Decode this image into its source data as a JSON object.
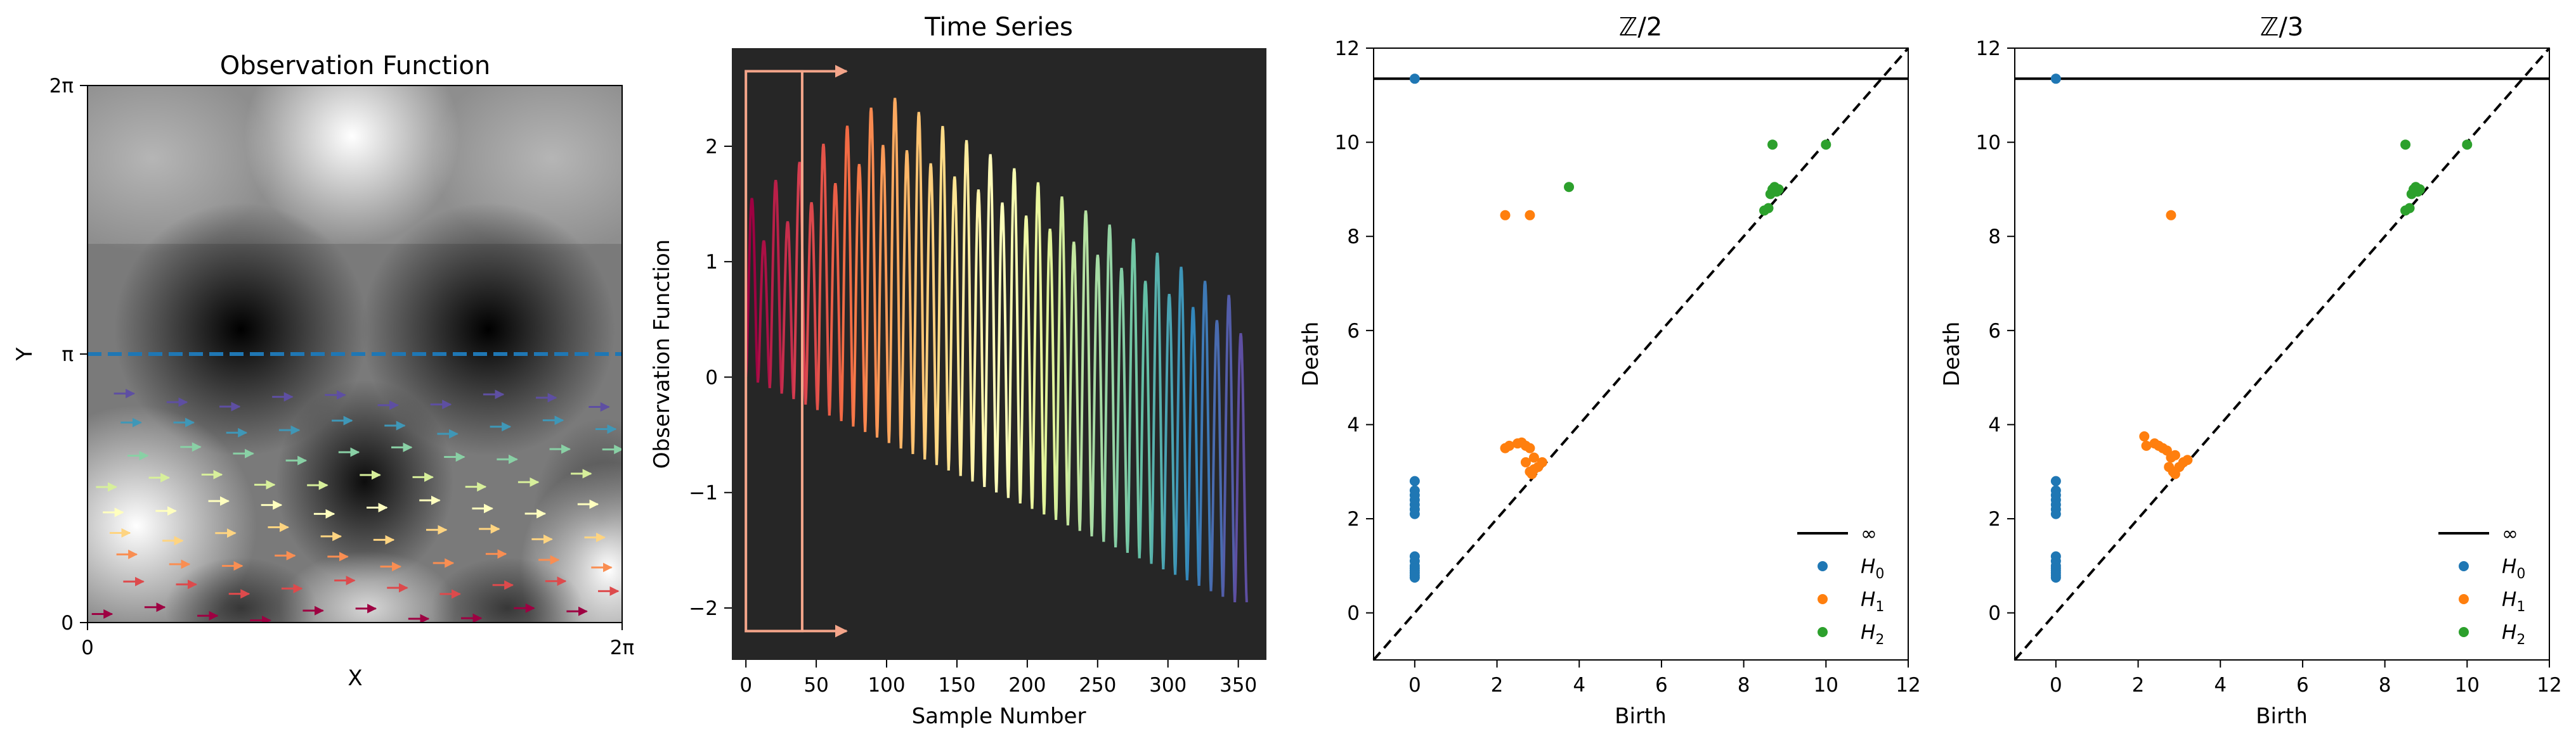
{
  "figure": {
    "panel_count": 4
  },
  "chart_data": [
    {
      "type": "heatmap",
      "title": "Observation Function",
      "xlabel": "X",
      "ylabel": "Y",
      "xlim": [
        0,
        6.2832
      ],
      "ylim": [
        0,
        6.2832
      ],
      "xticks": [
        {
          "value": 0,
          "label": "0"
        },
        {
          "value": 6.2832,
          "label": "2π"
        }
      ],
      "yticks": [
        {
          "value": 0,
          "label": "0"
        },
        {
          "value": 3.1416,
          "label": "π"
        },
        {
          "value": 6.2832,
          "label": "2π"
        }
      ],
      "colormap": "greys",
      "threshold_line": {
        "y": 3.1416,
        "style": "dashed",
        "color": "#1f77b4"
      },
      "arrow_field": {
        "direction": "+x",
        "colormap": "Spectral",
        "rows": 9,
        "y_range": [
          0.1,
          2.6
        ]
      }
    },
    {
      "type": "line",
      "title": "Time Series",
      "xlabel": "Sample Number",
      "ylabel": "Observation Function",
      "background": "#262626",
      "xlim": [
        -10,
        370
      ],
      "ylim": [
        -2.45,
        2.85
      ],
      "xticks": [
        0,
        50,
        100,
        150,
        200,
        250,
        300,
        350
      ],
      "yticks": [
        -2,
        -1,
        0,
        1,
        2
      ],
      "x_range": [
        0,
        356
      ],
      "n_peaks": 42,
      "peak_first": 1.55,
      "peak_max": 2.45,
      "peak_last": 0.65,
      "trough_first": 0.0,
      "trough_last": -1.95,
      "colormap": "Spectral",
      "highlight_box": {
        "x": [
          0,
          40
        ],
        "y": [
          -2.2,
          2.65
        ],
        "color": "#f4a58a"
      }
    },
    {
      "type": "scatter",
      "title": "ℤ/2",
      "xlabel": "Birth",
      "ylabel": "Death",
      "xlim": [
        -1,
        12
      ],
      "ylim": [
        -1,
        12
      ],
      "xticks": [
        0,
        2,
        4,
        6,
        8,
        10,
        12
      ],
      "yticks": [
        0,
        2,
        4,
        6,
        8,
        10,
        12
      ],
      "infinity_line": 11.35,
      "legend": {
        "position": "bottom-right",
        "entries": [
          {
            "label": "∞",
            "kind": "line",
            "color": "#000000"
          },
          {
            "base": "H",
            "sub": "0",
            "color": "#1f77b4"
          },
          {
            "base": "H",
            "sub": "1",
            "color": "#ff7f0e"
          },
          {
            "base": "H",
            "sub": "2",
            "color": "#2ca02c"
          }
        ]
      },
      "series": [
        {
          "name": "H0",
          "color": "#1f77b4",
          "points": [
            [
              0,
              11.35
            ],
            [
              0,
              2.8
            ],
            [
              0,
              2.6
            ],
            [
              0,
              2.5
            ],
            [
              0,
              2.4
            ],
            [
              0,
              2.3
            ],
            [
              0,
              2.2
            ],
            [
              0,
              2.1
            ],
            [
              0,
              1.2
            ],
            [
              0,
              1.1
            ],
            [
              0,
              1.0
            ],
            [
              0,
              0.95
            ],
            [
              0,
              0.9
            ],
            [
              0,
              0.85
            ],
            [
              0,
              0.8
            ],
            [
              0,
              0.75
            ]
          ]
        },
        {
          "name": "H1",
          "color": "#ff7f0e",
          "points": [
            [
              2.2,
              8.45
            ],
            [
              2.8,
              8.45
            ],
            [
              2.2,
              3.5
            ],
            [
              2.3,
              3.55
            ],
            [
              2.5,
              3.6
            ],
            [
              2.6,
              3.62
            ],
            [
              2.7,
              3.55
            ],
            [
              2.8,
              3.5
            ],
            [
              2.9,
              3.3
            ],
            [
              2.7,
              3.2
            ],
            [
              2.8,
              3.0
            ],
            [
              2.9,
              3.05
            ],
            [
              3.0,
              3.1
            ],
            [
              3.1,
              3.2
            ],
            [
              2.85,
              2.95
            ]
          ]
        },
        {
          "name": "H2",
          "color": "#2ca02c",
          "points": [
            [
              3.75,
              9.05
            ],
            [
              8.7,
              9.95
            ],
            [
              10.0,
              9.95
            ],
            [
              8.7,
              9.0
            ],
            [
              8.75,
              9.05
            ],
            [
              8.8,
              8.95
            ],
            [
              8.85,
              9.0
            ],
            [
              8.65,
              8.9
            ],
            [
              8.5,
              8.55
            ],
            [
              8.6,
              8.6
            ]
          ]
        }
      ]
    },
    {
      "type": "scatter",
      "title": "ℤ/3",
      "xlabel": "Birth",
      "ylabel": "Death",
      "xlim": [
        -1,
        12
      ],
      "ylim": [
        -1,
        12
      ],
      "xticks": [
        0,
        2,
        4,
        6,
        8,
        10,
        12
      ],
      "yticks": [
        0,
        2,
        4,
        6,
        8,
        10,
        12
      ],
      "infinity_line": 11.35,
      "legend": {
        "position": "bottom-right",
        "entries": [
          {
            "label": "∞",
            "kind": "line",
            "color": "#000000"
          },
          {
            "base": "H",
            "sub": "0",
            "color": "#1f77b4"
          },
          {
            "base": "H",
            "sub": "1",
            "color": "#ff7f0e"
          },
          {
            "base": "H",
            "sub": "2",
            "color": "#2ca02c"
          }
        ]
      },
      "series": [
        {
          "name": "H0",
          "color": "#1f77b4",
          "points": [
            [
              0,
              11.35
            ],
            [
              0,
              2.8
            ],
            [
              0,
              2.6
            ],
            [
              0,
              2.5
            ],
            [
              0,
              2.4
            ],
            [
              0,
              2.3
            ],
            [
              0,
              2.2
            ],
            [
              0,
              2.1
            ],
            [
              0,
              1.2
            ],
            [
              0,
              1.1
            ],
            [
              0,
              1.0
            ],
            [
              0,
              0.95
            ],
            [
              0,
              0.9
            ],
            [
              0,
              0.85
            ],
            [
              0,
              0.8
            ],
            [
              0,
              0.75
            ]
          ]
        },
        {
          "name": "H1",
          "color": "#ff7f0e",
          "points": [
            [
              2.8,
              8.45
            ],
            [
              2.15,
              3.75
            ],
            [
              2.2,
              3.55
            ],
            [
              2.4,
              3.6
            ],
            [
              2.5,
              3.55
            ],
            [
              2.6,
              3.5
            ],
            [
              2.7,
              3.45
            ],
            [
              2.8,
              3.3
            ],
            [
              2.9,
              3.35
            ],
            [
              2.75,
              3.1
            ],
            [
              2.85,
              3.0
            ],
            [
              3.0,
              3.1
            ],
            [
              3.1,
              3.2
            ],
            [
              3.2,
              3.25
            ],
            [
              2.9,
              2.95
            ]
          ]
        },
        {
          "name": "H2",
          "color": "#2ca02c",
          "points": [
            [
              8.5,
              9.95
            ],
            [
              10.0,
              9.95
            ],
            [
              8.7,
              9.0
            ],
            [
              8.75,
              9.05
            ],
            [
              8.8,
              8.95
            ],
            [
              8.85,
              9.0
            ],
            [
              8.65,
              8.9
            ],
            [
              8.5,
              8.55
            ],
            [
              8.6,
              8.6
            ]
          ]
        }
      ]
    }
  ]
}
